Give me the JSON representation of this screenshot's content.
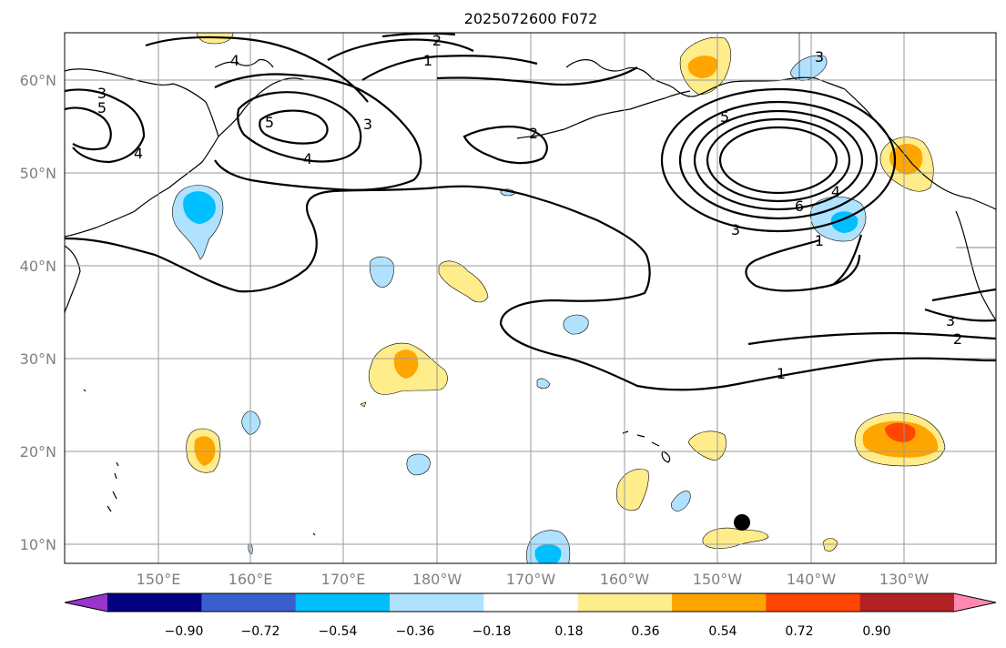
{
  "title": "2025072600 F072",
  "lat_labels": [
    "60°N",
    "50°N",
    "40°N",
    "30°N",
    "20°N",
    "10°N"
  ],
  "lon_labels": [
    "150°E",
    "160°E",
    "170°E",
    "180°W",
    "170°W",
    "160°W",
    "150°W",
    "140°W",
    "130°W"
  ],
  "colorbar": {
    "colors": [
      "#9933cc",
      "#000080",
      "#3a5fcd",
      "#00bfff",
      "#b0e2ff",
      "#ffffff",
      "#ffec8b",
      "#ffa500",
      "#ff4500",
      "#b22222",
      "#ff88b0"
    ],
    "tick_labels": [
      "−0.90",
      "−0.72",
      "−0.54",
      "−0.36",
      "−0.18",
      "0.18",
      "0.36",
      "0.54",
      "0.72",
      "0.90"
    ]
  },
  "contour_labels": [
    "2",
    "1",
    "4",
    "3",
    "5",
    "3",
    "4",
    "5",
    "4",
    "2",
    "5",
    "6",
    "4",
    "3",
    "1",
    "1",
    "3",
    "2",
    "3"
  ],
  "marker": "filled-circle"
}
